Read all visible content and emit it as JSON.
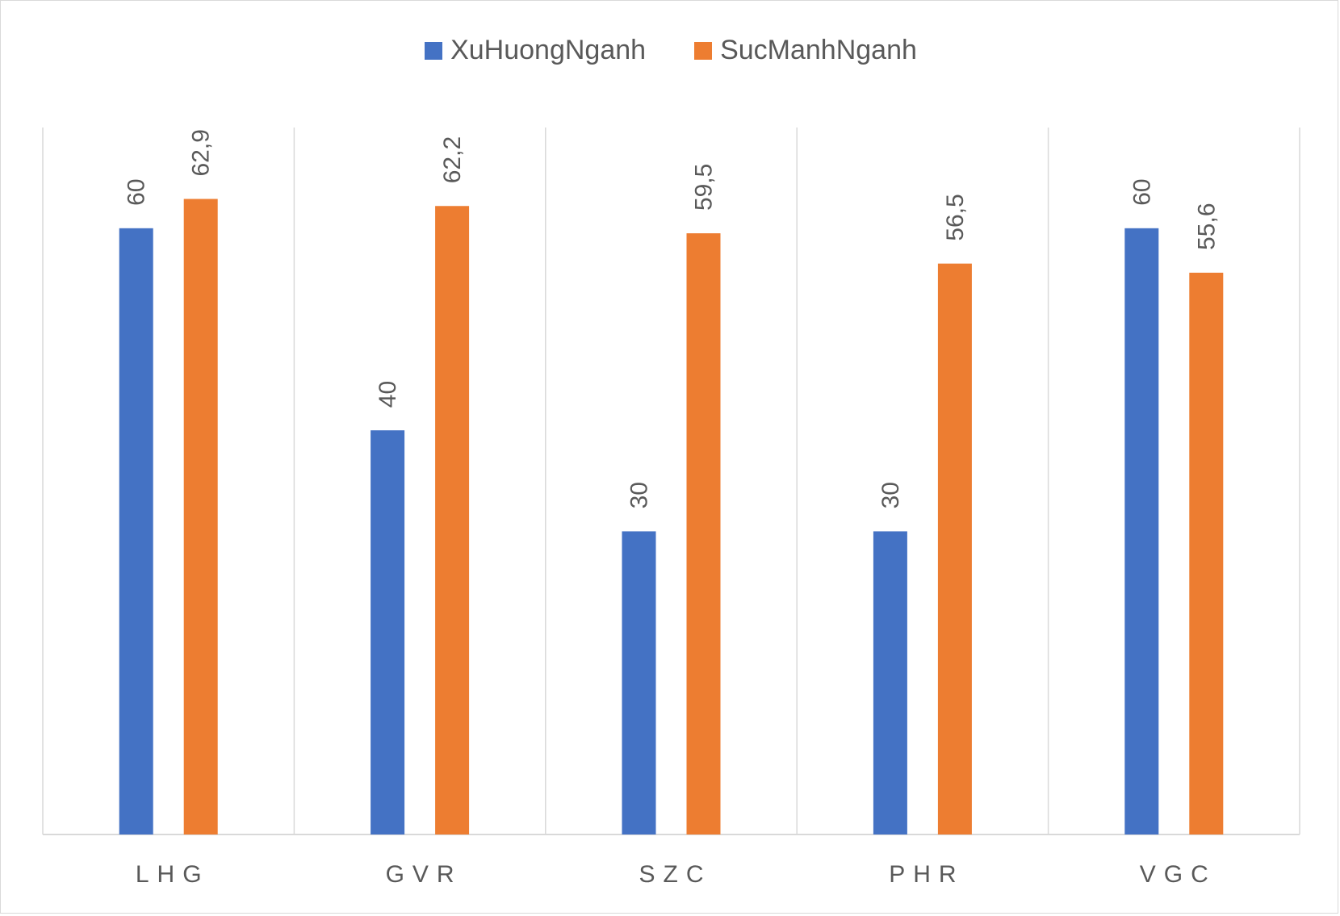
{
  "chart_data": {
    "type": "bar",
    "categories": [
      "LHG",
      "GVR",
      "SZC",
      "PHR",
      "VGC"
    ],
    "series": [
      {
        "name": "XuHuongNganh",
        "values": [
          60,
          40,
          30,
          30,
          60
        ],
        "labels": [
          "60",
          "40",
          "30",
          "30",
          "60"
        ],
        "color": "#4472C4"
      },
      {
        "name": "SucManhNganh",
        "values": [
          62.9,
          62.2,
          59.5,
          56.5,
          55.6
        ],
        "labels": [
          "62,9",
          "62,2",
          "59,5",
          "56,5",
          "55,6"
        ],
        "color": "#ED7D31"
      }
    ],
    "ylim": [
      0,
      70
    ],
    "grid": "vertical category separators",
    "legend": "top-center"
  }
}
